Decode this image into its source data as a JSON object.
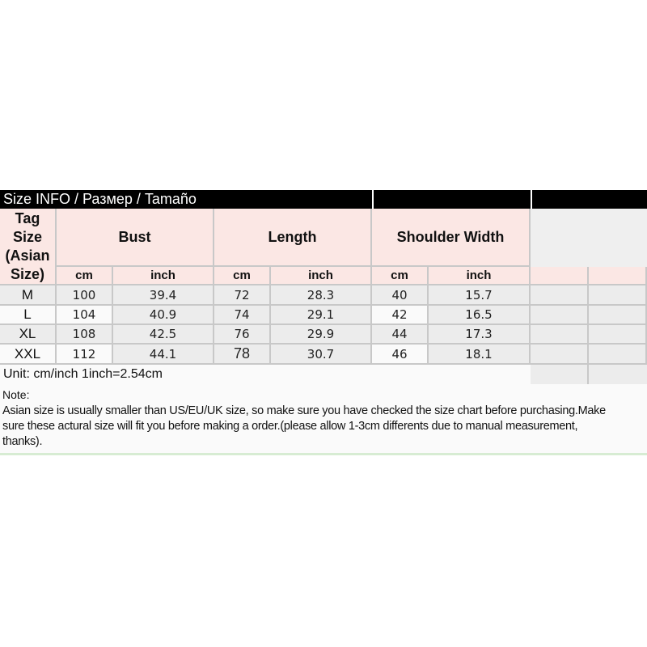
{
  "title": "Size INFO / Размер / Tamaño",
  "header": {
    "tag_size": "Tag Size (Asian Size)",
    "groups": [
      "Bust",
      "Length",
      "Shoulder Width"
    ],
    "units": [
      "cm",
      "inch",
      "cm",
      "inch",
      "cm",
      "inch"
    ]
  },
  "rows": [
    {
      "size": "M",
      "values": [
        "100",
        "39.4",
        "72",
        "28.3",
        "40",
        "15.7"
      ]
    },
    {
      "size": "L",
      "values": [
        "104",
        "40.9",
        "74",
        "29.1",
        "42",
        "16.5"
      ]
    },
    {
      "size": "XL",
      "values": [
        "108",
        "42.5",
        "76",
        "29.9",
        "44",
        "17.3"
      ]
    },
    {
      "size": "XXL",
      "values": [
        "112",
        "44.1",
        "78",
        "30.7",
        "46",
        "18.1"
      ]
    }
  ],
  "unit_note": "Unit: cm/inch 1inch=2.54cm",
  "note_label": "Note:",
  "note_text": "Asian size is usually smaller than US/EU/UK size, so make sure you have checked the size chart before purchasing.Make sure these actural size will fit you before making a order.(please allow 1-3cm differents due to manual measurement, thanks).",
  "colors": {
    "header_bg": "#000000",
    "pink": "#fbe7e4",
    "grey": "#ececec",
    "grid": "#c8c8c8"
  }
}
